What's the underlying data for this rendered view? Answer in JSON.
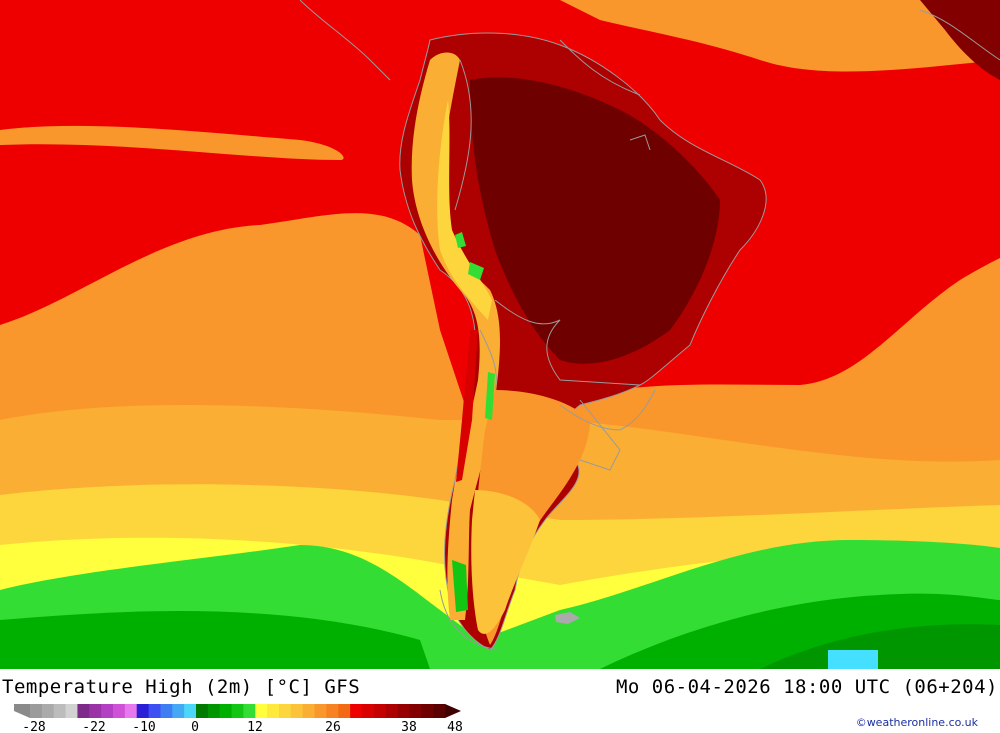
{
  "header": {
    "title": "Temperature High (2m) [°C] GFS",
    "datetime": "Mo 06-04-2026 18:00 UTC (06+204)"
  },
  "legend": {
    "tick_labels": [
      "-28",
      "-22",
      "-10",
      "0",
      "12",
      "26",
      "38",
      "48"
    ],
    "colors": [
      "#9b9b9b",
      "#aaaaaa",
      "#bcbcbc",
      "#d2d2d2",
      "#7e2a8a",
      "#9a33a6",
      "#b33fc2",
      "#cf52d6",
      "#e778ee",
      "#2a1ed6",
      "#3c4ff0",
      "#3f7df2",
      "#45a8f5",
      "#4cd6f7",
      "#007a00",
      "#009600",
      "#00b000",
      "#14c614",
      "#33dd33",
      "#ffff3d",
      "#ffe93a",
      "#fdd53c",
      "#fcc239",
      "#fbae34",
      "#f9972c",
      "#f78223",
      "#f26b12",
      "#ef0000",
      "#d90000",
      "#c40000",
      "#ad0000",
      "#960000",
      "#820000",
      "#6e0000",
      "#5a0000"
    ]
  },
  "credit": "©weatheronline.co.uk"
}
